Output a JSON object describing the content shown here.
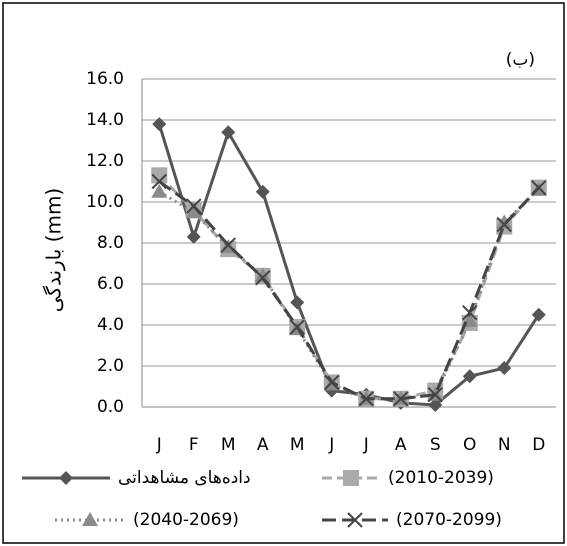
{
  "chart_data": {
    "type": "line",
    "title": "(ب)",
    "y_label": "بارندگی (mm)",
    "categories": [
      "J",
      "F",
      "M",
      "A",
      "M",
      "J",
      "J",
      "A",
      "S",
      "O",
      "N",
      "D"
    ],
    "series": [
      {
        "name": "داده‌های مشاهداتی",
        "color": "#555555",
        "dash": "solid",
        "marker": "diamond",
        "values": [
          13.8,
          8.3,
          13.4,
          10.5,
          5.1,
          0.8,
          0.6,
          0.2,
          0.1,
          1.5,
          1.9,
          4.5
        ]
      },
      {
        "name": "(2010-2039)",
        "color": "#aaaaaa",
        "dash": "dash",
        "marker": "square",
        "values": [
          11.3,
          9.6,
          7.7,
          6.4,
          3.9,
          1.2,
          0.4,
          0.4,
          0.8,
          4.1,
          8.8,
          10.7
        ]
      },
      {
        "name": "(2040-2069)",
        "color": "#8a8a8a",
        "dash": "dot",
        "marker": "triangle",
        "values": [
          10.5,
          9.5,
          7.8,
          6.4,
          3.8,
          1.1,
          0.4,
          0.4,
          0.6,
          4.2,
          9.0,
          10.6
        ]
      },
      {
        "name": "(2070-2099)",
        "color": "#444444",
        "dash": "longdash",
        "marker": "x",
        "values": [
          11.0,
          9.8,
          7.9,
          6.3,
          3.9,
          1.2,
          0.4,
          0.4,
          0.6,
          4.6,
          8.9,
          10.7
        ]
      }
    ],
    "ylim": [
      0,
      16
    ],
    "yticks": [
      {
        "value": 0,
        "label": "0.0"
      },
      {
        "value": 2,
        "label": "2.0"
      },
      {
        "value": 4,
        "label": "4.0"
      },
      {
        "value": 6,
        "label": "6.0"
      },
      {
        "value": 8,
        "label": "8.0"
      },
      {
        "value": 10,
        "label": "10.0"
      },
      {
        "value": 12,
        "label": "12.0"
      },
      {
        "value": 14,
        "label": "14.0"
      },
      {
        "value": 16,
        "label": "16.0"
      }
    ],
    "grid": true
  }
}
